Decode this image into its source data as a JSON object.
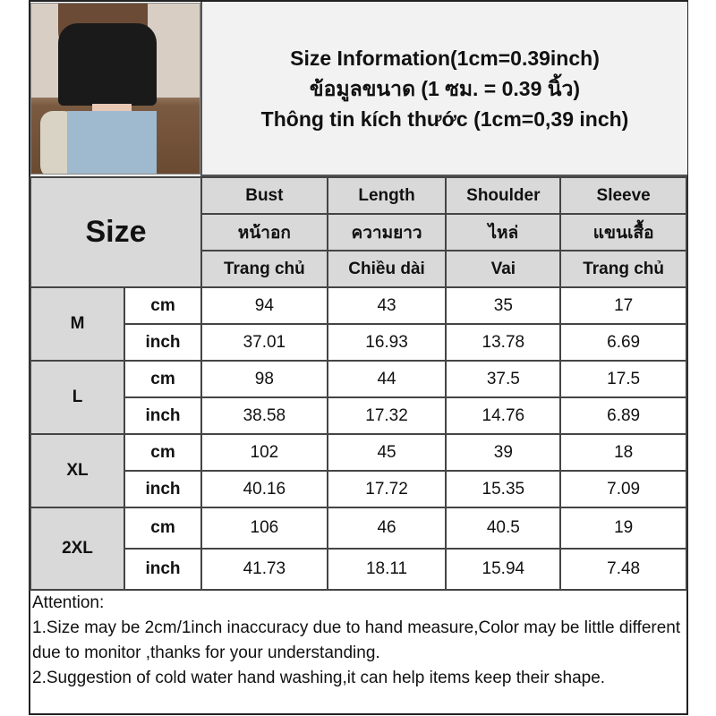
{
  "header": {
    "lines": [
      "Size Information(1cm=0.39inch)",
      "ข้อมูลขนาด (1 ซม. = 0.39 นิ้ว)",
      "Thông tin kích thước (1cm=0,39 inch)"
    ]
  },
  "table": {
    "size_label": "Size",
    "columns": [
      {
        "en": "Bust",
        "th": "หน้าอก",
        "vi": "Trang chủ"
      },
      {
        "en": "Length",
        "th": "ความยาว",
        "vi": "Chiều dài"
      },
      {
        "en": "Shoulder",
        "th": "ไหล่",
        "vi": "Vai"
      },
      {
        "en": "Sleeve",
        "th": "แขนเสื้อ",
        "vi": "Trang chủ"
      }
    ],
    "rows": [
      {
        "size": "M",
        "cm_label": "cm",
        "inch_label": "inch",
        "cm": [
          "94",
          "43",
          "35",
          "17"
        ],
        "inch": [
          "37.01",
          "16.93",
          "13.78",
          "6.69"
        ]
      },
      {
        "size": "L",
        "cm_label": "cm",
        "inch_label": "inch",
        "cm": [
          "98",
          "44",
          "37.5",
          "17.5"
        ],
        "inch": [
          "38.58",
          "17.32",
          "14.76",
          "6.89"
        ]
      },
      {
        "size": "XL",
        "cm_label": "cm",
        "inch_label": "inch",
        "cm": [
          "102",
          "45",
          "39",
          "18"
        ],
        "inch": [
          "40.16",
          "17.72",
          "15.35",
          "7.09"
        ]
      },
      {
        "size": "2XL",
        "cm_label": "cm",
        "inch_label": "inch",
        "cm": [
          "106",
          "46",
          "40.5",
          "19"
        ],
        "inch": [
          "41.73",
          "18.11",
          "15.94",
          "7.48"
        ]
      }
    ]
  },
  "notes": [
    "Attention:",
    "1.Size may be 2cm/1inch inaccuracy due to hand measure,Color may be little different due to monitor ,thanks for your understanding.",
    "2.Suggestion of cold water hand washing,it can help items keep their shape."
  ]
}
